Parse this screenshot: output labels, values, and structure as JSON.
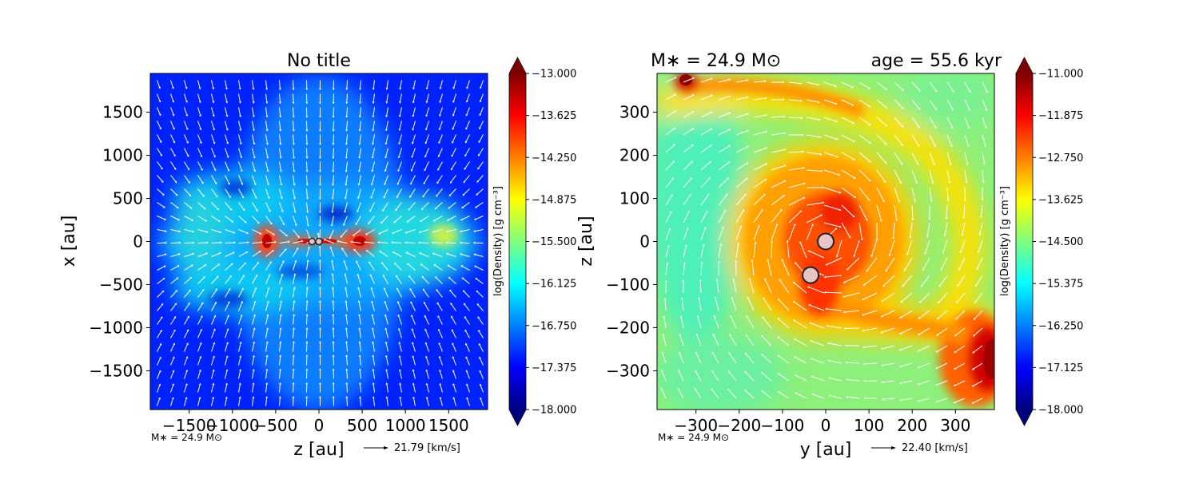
{
  "chart_data": [
    {
      "type": "heatmap",
      "title": "No title",
      "xlabel": "z [au]",
      "ylabel": "x [au]",
      "xlim": [
        -1950,
        1950
      ],
      "ylim": [
        -1950,
        1950
      ],
      "x_ticks": [
        -1500,
        -1000,
        -500,
        0,
        500,
        1000,
        1500
      ],
      "x_tick_labels": [
        "−1500",
        "−1000",
        "−500",
        "0",
        "500",
        "1000",
        "1500"
      ],
      "y_ticks": [
        -1500,
        -1000,
        -500,
        0,
        500,
        1000,
        1500
      ],
      "y_tick_labels": [
        "−1500",
        "−1000",
        "−500",
        "0",
        "500",
        "1000",
        "1500"
      ],
      "colorbar": {
        "label": "log(Density) [g cm⁻³]",
        "min": -18.0,
        "max": -13.0,
        "ticks": [
          -13.0,
          -13.625,
          -14.25,
          -14.875,
          -15.5,
          -16.125,
          -16.75,
          -17.375,
          -18.0
        ],
        "tick_labels": [
          "−13.000",
          "−13.625",
          "−14.250",
          "−14.875",
          "−15.500",
          "−16.125",
          "−16.750",
          "−17.375",
          "−18.000"
        ]
      },
      "sinks": [
        {
          "x": -80,
          "y": 0
        },
        {
          "x": 0,
          "y": 0
        }
      ],
      "mass_label": "M∗ = 24.9 M⊙",
      "velocity_key": "21.79 [km/s]"
    },
    {
      "type": "heatmap",
      "title_left": "M∗ = 24.9 M⊙",
      "title_right": "age = 55.6 kyr",
      "xlabel": "y [au]",
      "ylabel": "z [au]",
      "xlim": [
        -390,
        390
      ],
      "ylim": [
        -390,
        390
      ],
      "x_ticks": [
        -300,
        -200,
        -100,
        0,
        100,
        200,
        300
      ],
      "x_tick_labels": [
        "−300",
        "−200",
        "−100",
        "0",
        "100",
        "200",
        "300"
      ],
      "y_ticks": [
        -300,
        -200,
        -100,
        0,
        100,
        200,
        300
      ],
      "y_tick_labels": [
        "−300",
        "−200",
        "−100",
        "0",
        "100",
        "200",
        "300"
      ],
      "colorbar": {
        "label": "log(Density) [g cm⁻³]",
        "min": -18.0,
        "max": -11.0,
        "ticks": [
          -11.0,
          -11.875,
          -12.75,
          -13.625,
          -14.5,
          -15.375,
          -16.25,
          -17.125,
          -18.0
        ],
        "tick_labels": [
          "−11.000",
          "−11.875",
          "−12.750",
          "−13.625",
          "−14.500",
          "−15.375",
          "−16.250",
          "−17.125",
          "−18.000"
        ]
      },
      "sinks": [
        {
          "x": 0,
          "y": 0
        },
        {
          "x": -35,
          "y": -78
        }
      ],
      "mass_label": "M∗ = 24.9 M⊙",
      "velocity_key": "22.40 [km/s]"
    }
  ]
}
